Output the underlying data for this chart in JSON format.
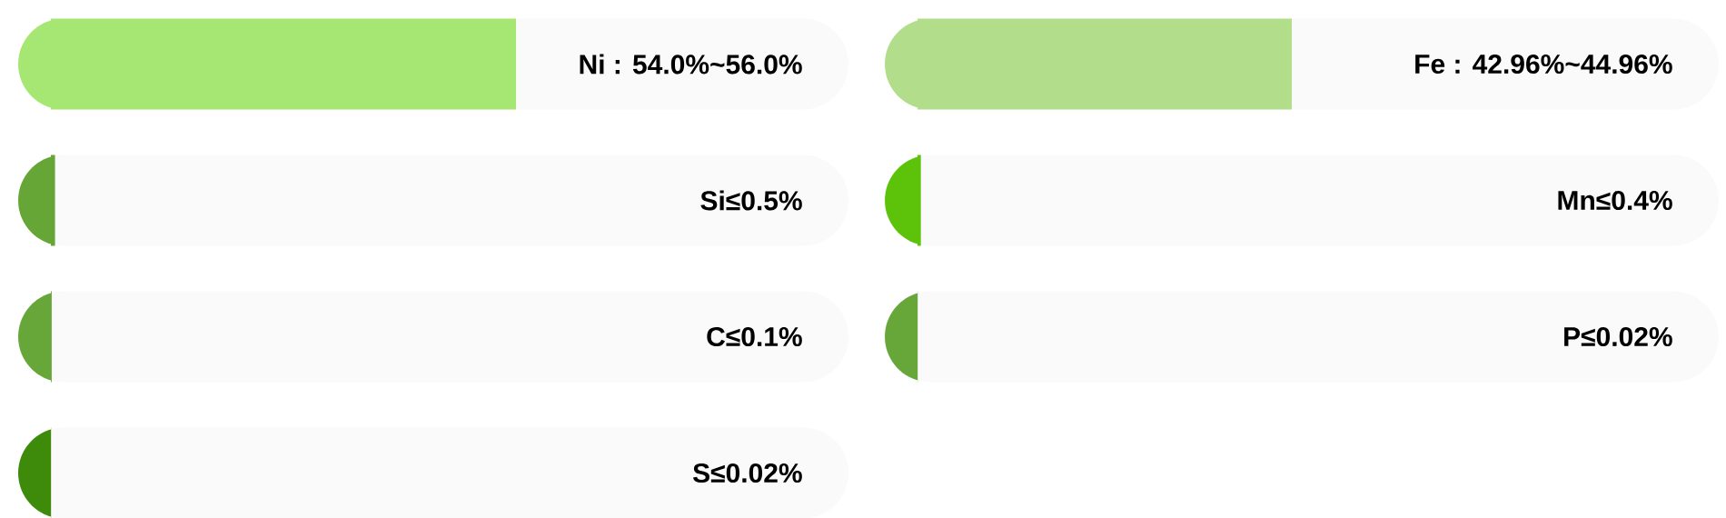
{
  "chart_data": [
    {
      "type": "bar",
      "orientation": "horizontal",
      "tick_labels": false,
      "categories": [
        null,
        null,
        null,
        null
      ],
      "values": [
        56,
        0.5,
        0.1,
        0.02
      ],
      "colors": [
        "#a6e672",
        "#65a637",
        "#67a73a",
        "#3e8a0a"
      ],
      "value_labels": [
        "Ni : 54.0%~56.0%",
        "Si≤0.5%",
        "C≤0.1%",
        "S≤0.02%"
      ]
    },
    {
      "type": "bar",
      "orientation": "horizontal",
      "tick_labels": false,
      "categories": [
        null,
        null,
        null
      ],
      "values": [
        44.96,
        0.4,
        0.02
      ],
      "colors": [
        "#b2dd8b",
        "#5cc30a",
        "#67a73a"
      ],
      "value_labels": [
        "Fe : 42.96%~44.96%",
        "Mn≤0.4%",
        "P≤0.02%"
      ]
    }
  ]
}
